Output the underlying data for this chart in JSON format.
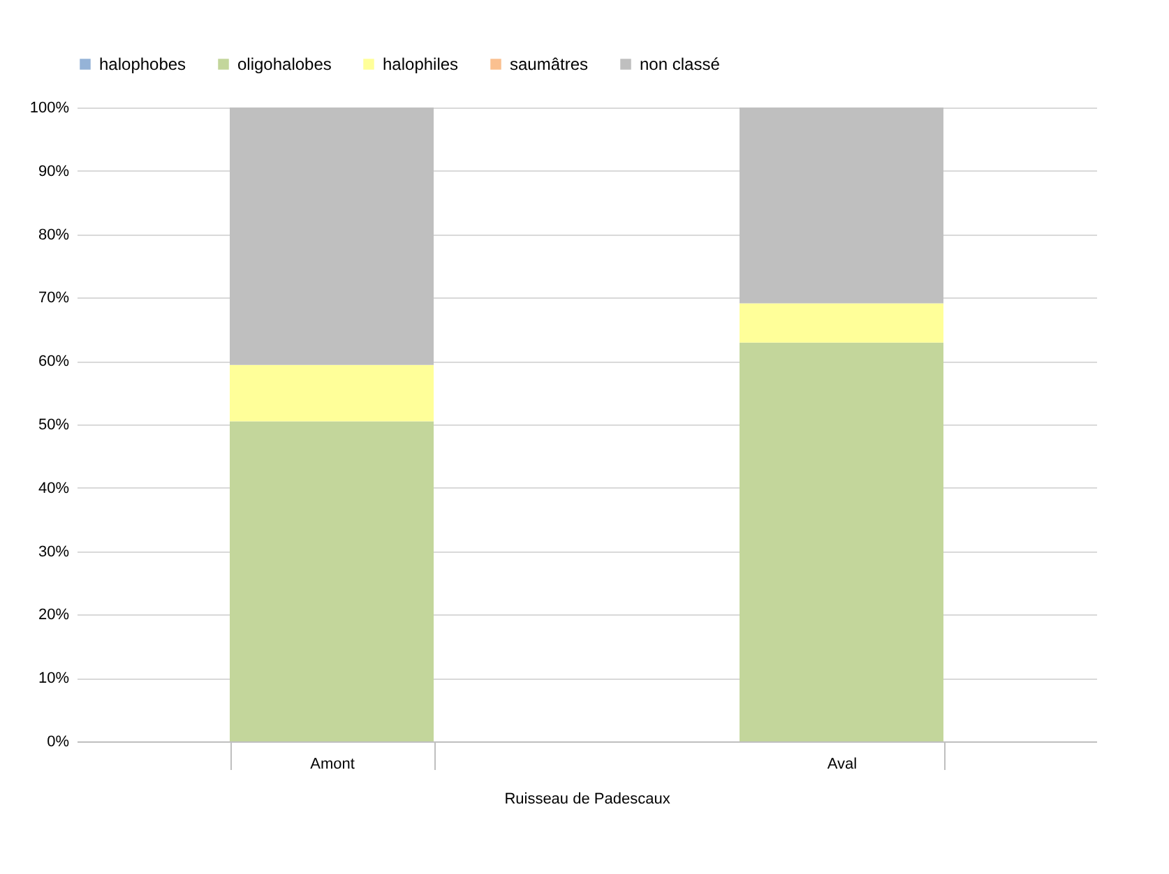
{
  "chart_data": {
    "type": "bar",
    "stacked": true,
    "categories": [
      "Amont",
      "Aval"
    ],
    "xlabel": "Ruisseau de Padescaux",
    "series": [
      {
        "name": "halophobes",
        "color": "#95b3d7",
        "values": [
          0,
          0
        ]
      },
      {
        "name": "oligohalobes",
        "color": "#c3d69b",
        "values": [
          50.5,
          62.9
        ]
      },
      {
        "name": "halophiles",
        "color": "#ffff99",
        "values": [
          8.9,
          6.2
        ]
      },
      {
        "name": "saumâtres",
        "color": "#fac090",
        "values": [
          0,
          0
        ]
      },
      {
        "name": "non classé",
        "color": "#bfbfbf",
        "values": [
          40.6,
          30.9
        ]
      }
    ],
    "ylim": [
      0,
      100
    ],
    "yticks": [
      {
        "value": 0,
        "label": "0%"
      },
      {
        "value": 10,
        "label": "10%"
      },
      {
        "value": 20,
        "label": "20%"
      },
      {
        "value": 30,
        "label": "30%"
      },
      {
        "value": 40,
        "label": "40%"
      },
      {
        "value": 50,
        "label": "50%"
      },
      {
        "value": 60,
        "label": "60%"
      },
      {
        "value": 70,
        "label": "70%"
      },
      {
        "value": 80,
        "label": "80%"
      },
      {
        "value": 90,
        "label": "90%"
      },
      {
        "value": 100,
        "label": "100%"
      }
    ],
    "grid": "y",
    "legend": "top"
  }
}
